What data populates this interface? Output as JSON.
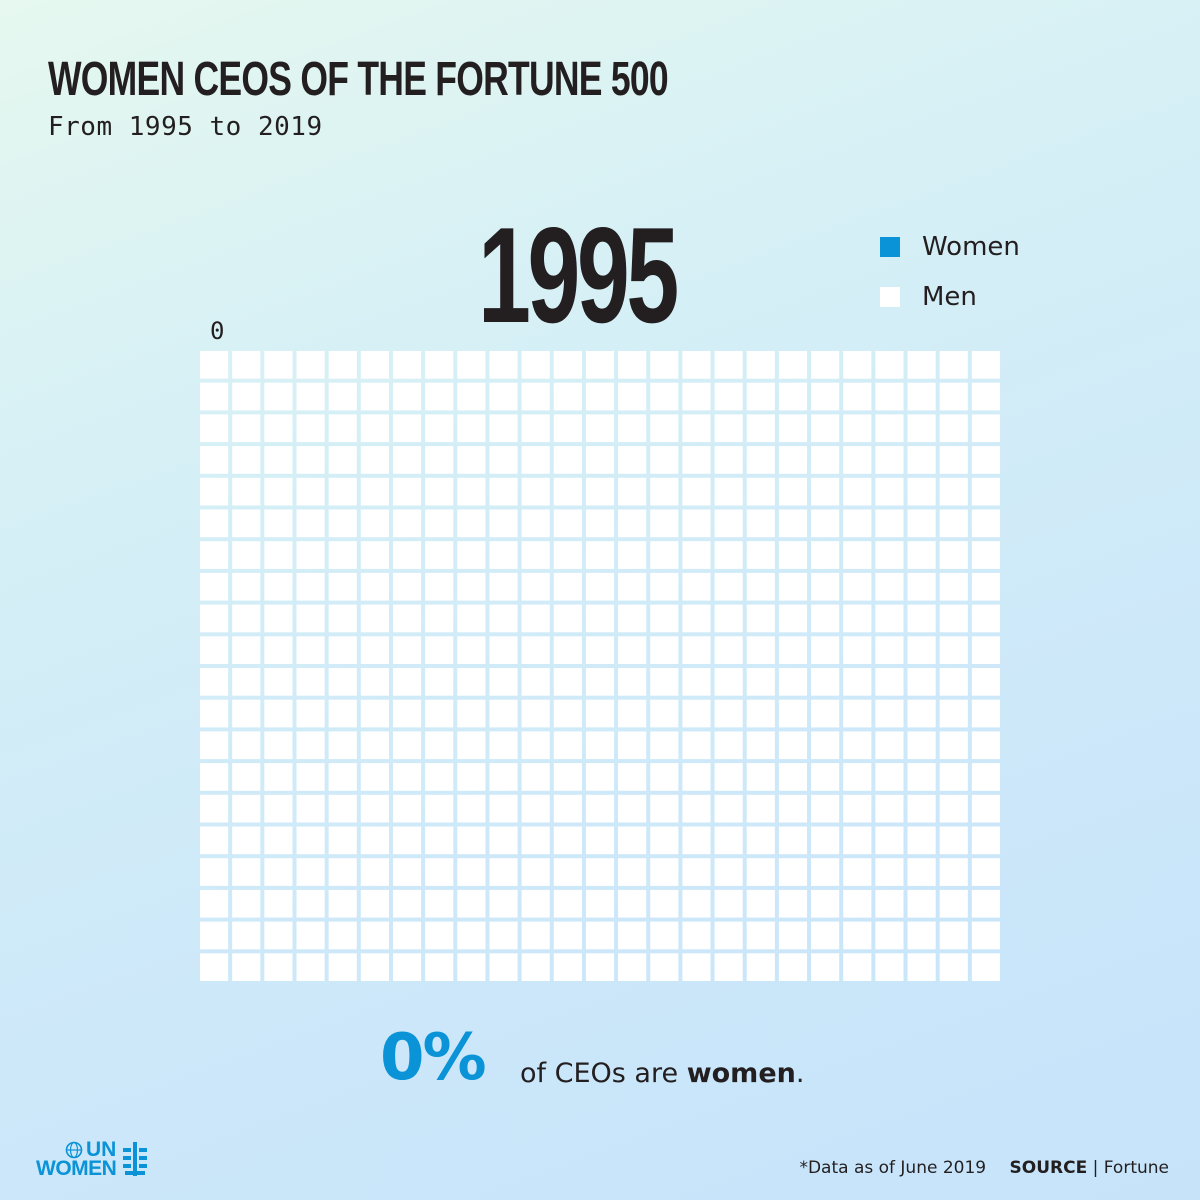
{
  "header": {
    "title": "WOMEN CEOS OF THE FORTUNE 500",
    "subtitle": "From 1995 to 2019"
  },
  "year_display": "1995",
  "counter_label": "0",
  "legend": [
    {
      "label": "Women",
      "color": "#0a93d6"
    },
    {
      "label": "Men",
      "color": "#ffffff"
    }
  ],
  "statement": {
    "percent": "0%",
    "text_before": "of CEOs are",
    "text_bold": "women",
    "text_after": "."
  },
  "logo": {
    "line1": "UN",
    "line2": "WOMEN",
    "icon": "un-women-emblem-icon"
  },
  "footer": {
    "note": "*Data as of June 2019",
    "source_label": "SOURCE",
    "separator": "|",
    "source_value": "Fortune"
  },
  "chart_data": {
    "type": "waffle",
    "year": 1995,
    "total_companies": 500,
    "rows": 20,
    "columns": 25,
    "series": [
      {
        "name": "Women",
        "value": 0,
        "color": "#0a93d6"
      },
      {
        "name": "Men",
        "value": 500,
        "color": "#ffffff"
      }
    ],
    "percent_women": 0
  }
}
